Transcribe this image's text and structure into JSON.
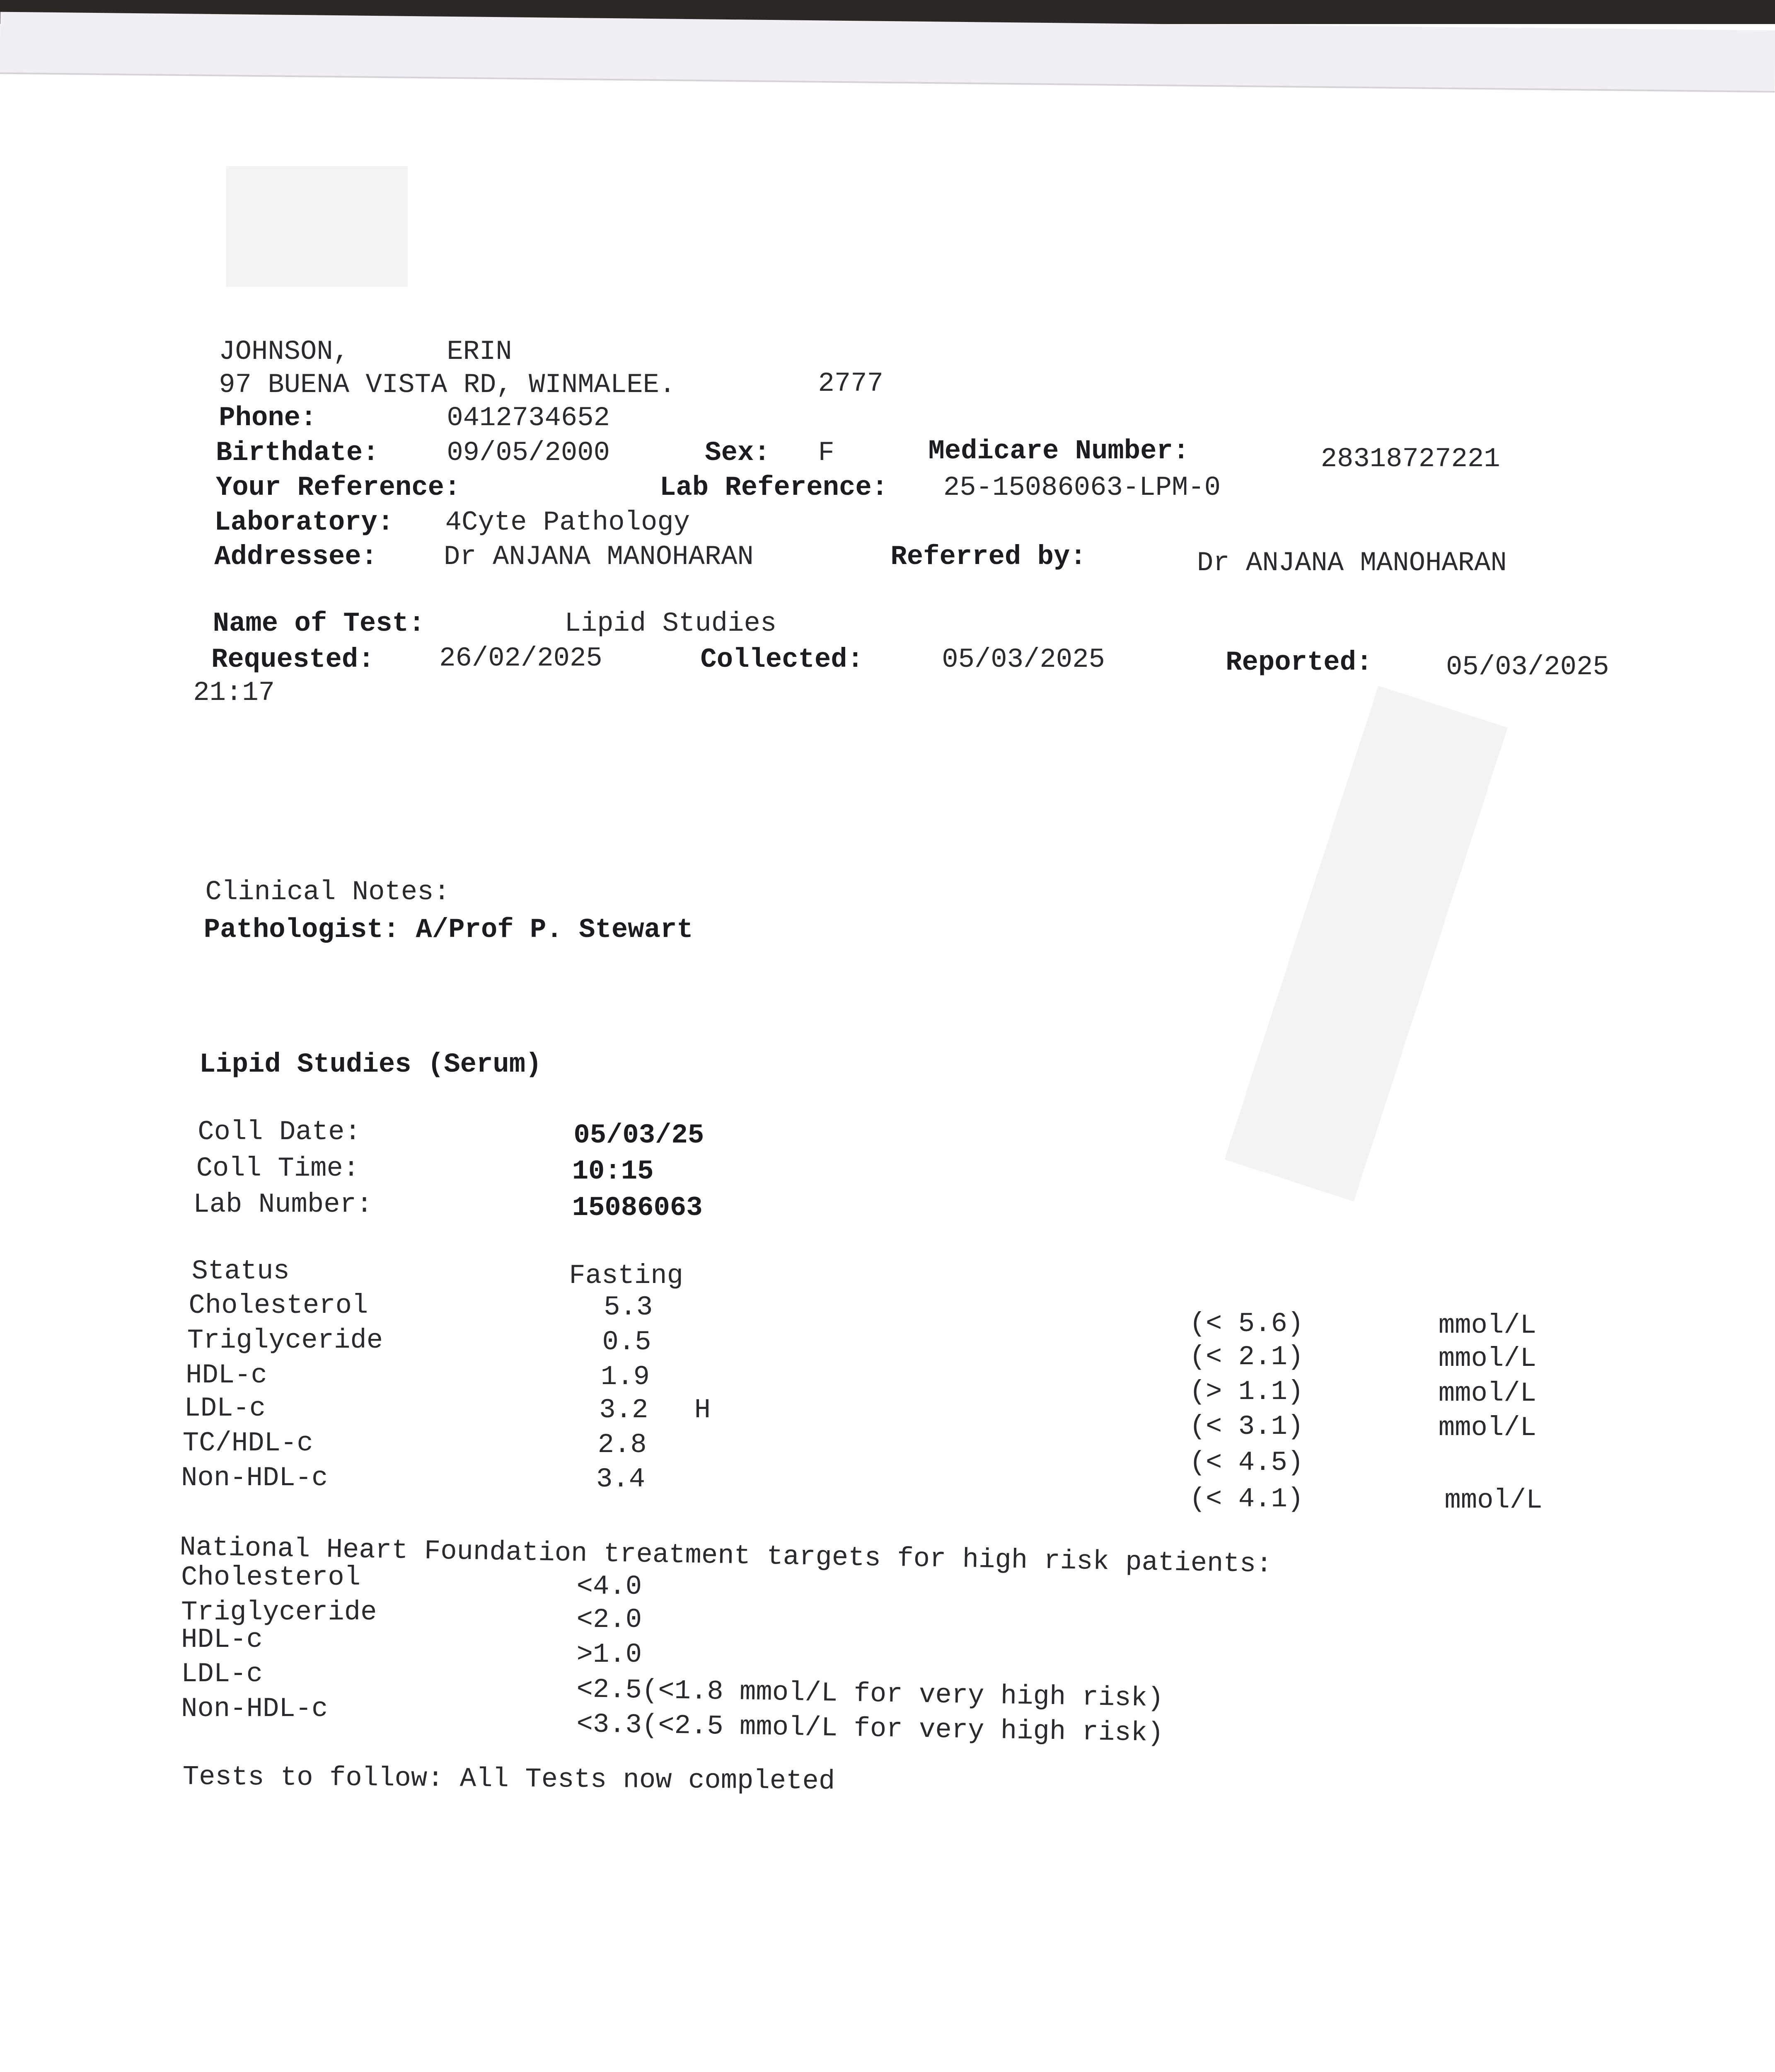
{
  "patient": {
    "surname": "JOHNSON,",
    "given": "ERIN",
    "address": "97 BUENA VISTA RD, WINMALEE.",
    "postcode": "2777",
    "phone_label": "Phone:",
    "phone": "0412734652",
    "birthdate_label": "Birthdate:",
    "birthdate": "09/05/2000",
    "sex_label": "Sex:",
    "sex": "F",
    "medicare_label": "Medicare Number:",
    "medicare": "28318727221"
  },
  "refs": {
    "your_ref_label": "Your Reference:",
    "lab_ref_label": "Lab Reference:",
    "lab_ref": "25-15086063-LPM-0",
    "laboratory_label": "Laboratory:",
    "laboratory": "4Cyte Pathology",
    "addressee_label": "Addressee:",
    "addressee": "Dr ANJANA MANOHARAN",
    "referred_label": "Referred by:",
    "referred": "Dr ANJANA MANOHARAN"
  },
  "test": {
    "name_label": "Name of Test:",
    "name": "Lipid Studies",
    "requested_label": "Requested:",
    "requested": "26/02/2025",
    "collected_label": "Collected:",
    "collected": "05/03/2025",
    "reported_label": "Reported:",
    "reported": "05/03/2025",
    "reported_time": "21:17"
  },
  "notes": {
    "clinical_label": "Clinical Notes:",
    "pathologist": "Pathologist: A/Prof P. Stewart"
  },
  "results": {
    "title": "Lipid Studies (Serum)",
    "coll_date_label": "Coll Date:",
    "coll_date": "05/03/25",
    "coll_time_label": "Coll Time:",
    "coll_time": "10:15",
    "lab_number_label": "Lab Number:",
    "lab_number": "15086063",
    "status_label": "Status",
    "status": "Fasting",
    "rows": [
      {
        "name": "Cholesterol",
        "value": "5.3",
        "flag": "",
        "range": "(< 5.6)",
        "unit": "mmol/L"
      },
      {
        "name": "Triglyceride",
        "value": "0.5",
        "flag": "",
        "range": "(< 2.1)",
        "unit": "mmol/L"
      },
      {
        "name": "HDL-c",
        "value": "1.9",
        "flag": "",
        "range": "(> 1.1)",
        "unit": "mmol/L"
      },
      {
        "name": "LDL-c",
        "value": "3.2",
        "flag": "H",
        "range": "(< 3.1)",
        "unit": "mmol/L"
      },
      {
        "name": "TC/HDL-c",
        "value": "2.8",
        "flag": "",
        "range": "(< 4.5)",
        "unit": ""
      },
      {
        "name": "Non-HDL-c",
        "value": "3.4",
        "flag": "",
        "range": "(< 4.1)",
        "unit": "mmol/L"
      }
    ]
  },
  "targets": {
    "heading": "National Heart Foundation treatment targets for high risk patients:",
    "rows": [
      {
        "name": "Cholesterol",
        "value": "<4.0"
      },
      {
        "name": "Triglyceride",
        "value": "<2.0"
      },
      {
        "name": "HDL-c",
        "value": ">1.0"
      },
      {
        "name": "LDL-c",
        "value": "<2.5(<1.8 mmol/L for very high risk)"
      },
      {
        "name": "Non-HDL-c",
        "value": "<3.3(<2.5 mmol/L for very high risk)"
      }
    ]
  },
  "footer": {
    "tests_to_follow": "Tests to follow: All Tests now completed"
  }
}
